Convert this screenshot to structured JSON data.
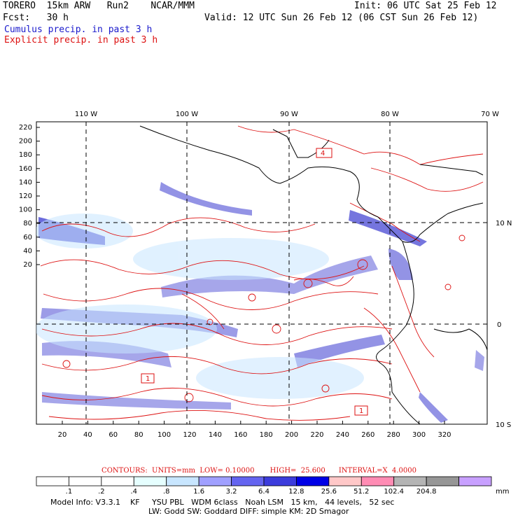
{
  "header": {
    "model": "TORERO  15km ARW   Run2    NCAR/MMM",
    "init": "Init: 06 UTC Sat 25 Feb 12",
    "fcst": "Fcst:   30 h",
    "valid": "Valid: 12 UTC Sun 26 Feb 12 (06 CST Sun 26 Feb 12)",
    "legend_cumulus": "Cumulus precip. in past 3 h",
    "legend_explicit": "Explicit precip. in past 3 h"
  },
  "map": {
    "lon_labels": [
      "110 W",
      "100 W",
      "90 W",
      "80 W",
      "70 W"
    ],
    "lat_labels": [
      "10 N",
      "0",
      "10 S"
    ],
    "y_ticks": [
      "220",
      "200",
      "180",
      "160",
      "140",
      "120",
      "100",
      "80",
      "60",
      "40",
      "20"
    ],
    "x_ticks": [
      "20",
      "40",
      "60",
      "80",
      "100",
      "120",
      "140",
      "160",
      "180",
      "200",
      "220",
      "240",
      "260",
      "280",
      "300",
      "320"
    ],
    "box_labels": [
      "4",
      "1",
      "1"
    ],
    "colors": {
      "cumulus": "#3a3ad0",
      "explicit": "#dd1111",
      "grid": "#000000",
      "coast": "#000000"
    }
  },
  "colorbar": {
    "title": "CONTOURS:  UNITS=mm  LOW= 0.10000       HIGH=  25.600      INTERVAL=X  4.0000",
    "ticks": [
      ".1",
      ".2",
      ".4",
      ".8",
      "1.6",
      "3.2",
      "6.4",
      "12.8",
      "25.6",
      "51.2",
      "102.4",
      "204.8"
    ],
    "unit": "mm",
    "colors": [
      "#ffffff",
      "#ffffff",
      "#ffffff",
      "#e6ffff",
      "#c8e6ff",
      "#a0a0ff",
      "#6464f0",
      "#3c3cdc",
      "#0000e6",
      "#ffc8c8",
      "#ff8cb4",
      "#b4b4b4",
      "#969696",
      "#c8a0ff"
    ]
  },
  "footer": {
    "line1": "Model Info: V3.3.1    KF     YSU PBL   WDM 6class   Noah LSM   15 km,   44 levels,   52 sec",
    "line2": "LW: Godd SW: Goddard DIFF: simple KM: 2D Smagor"
  }
}
